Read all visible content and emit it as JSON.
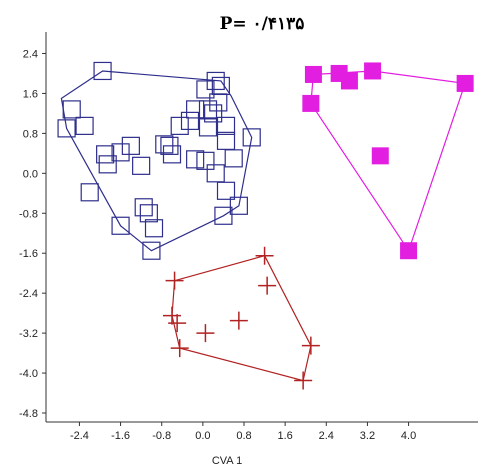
{
  "chart_data": {
    "type": "scatter",
    "title": "P= ۰/۴۱۳۵",
    "xlabel": "CVA 1",
    "ylabel": "",
    "xlim": [
      -3.05,
      5.35
    ],
    "ylim": [
      -4.98,
      2.75
    ],
    "x_ticks": [
      -2.4,
      -1.6,
      -0.8,
      0.0,
      0.8,
      1.6,
      2.4,
      3.2,
      4.0
    ],
    "x_tick_labels": [
      "-2.4",
      "-1.6",
      "-0.8",
      "0.0",
      "0.8",
      "1.6",
      "2.4",
      "3.2",
      "4.0"
    ],
    "y_ticks": [
      2.4,
      1.6,
      0.8,
      0.0,
      -0.8,
      -1.6,
      -2.4,
      -3.2,
      -4.0,
      -4.8
    ],
    "y_tick_labels": [
      "2.4",
      "1.6",
      "0.8",
      "0.0",
      "-0.8",
      "-1.6",
      "-2.4",
      "-3.2",
      "-4.0",
      "-4.8"
    ],
    "grid": false,
    "series": [
      {
        "marker": "open-square",
        "color": "#2e2e8c",
        "points": [
          [
            -2.55,
            1.28
          ],
          [
            -2.3,
            0.95
          ],
          [
            -2.65,
            0.9
          ],
          [
            -1.95,
            2.05
          ],
          [
            -1.9,
            0.38
          ],
          [
            -1.85,
            0.18
          ],
          [
            -1.4,
            0.55
          ],
          [
            -1.6,
            0.42
          ],
          [
            -1.2,
            0.15
          ],
          [
            -2.2,
            -0.38
          ],
          [
            -1.6,
            -1.05
          ],
          [
            -1.15,
            -0.68
          ],
          [
            -1.05,
            -0.8
          ],
          [
            -0.95,
            -1.1
          ],
          [
            -1.0,
            -1.55
          ],
          [
            -0.75,
            0.58
          ],
          [
            -0.6,
            0.38
          ],
          [
            -0.65,
            0.55
          ],
          [
            -0.25,
            1.05
          ],
          [
            -0.15,
            1.28
          ],
          [
            0.05,
            1.68
          ],
          [
            0.1,
            1.28
          ],
          [
            0.25,
            1.85
          ],
          [
            0.35,
            1.75
          ],
          [
            -0.45,
            0.95
          ],
          [
            0.3,
            1.42
          ],
          [
            0.1,
            0.92
          ],
          [
            0.2,
            1.2
          ],
          [
            0.45,
            0.95
          ],
          [
            -0.15,
            0.28
          ],
          [
            0.05,
            0.25
          ],
          [
            0.45,
            0.65
          ],
          [
            0.6,
            0.3
          ],
          [
            0.25,
            0.0
          ],
          [
            0.45,
            -0.35
          ],
          [
            0.4,
            -0.85
          ],
          [
            0.7,
            -0.65
          ],
          [
            0.95,
            0.72
          ]
        ],
        "hull": [
          [
            -1.95,
            2.05
          ],
          [
            0.35,
            1.85
          ],
          [
            0.55,
            1.55
          ],
          [
            0.95,
            0.72
          ],
          [
            0.7,
            -0.65
          ],
          [
            0.4,
            -0.85
          ],
          [
            -1.0,
            -1.55
          ],
          [
            -1.6,
            -1.05
          ],
          [
            -2.65,
            0.9
          ],
          [
            -2.75,
            1.5
          ]
        ]
      },
      {
        "marker": "filled-square",
        "color": "#e21ee0",
        "points": [
          [
            2.15,
            1.98
          ],
          [
            2.65,
            2.0
          ],
          [
            2.85,
            1.85
          ],
          [
            3.3,
            2.05
          ],
          [
            5.1,
            1.8
          ],
          [
            2.1,
            1.4
          ],
          [
            3.45,
            0.35
          ],
          [
            4.0,
            -1.55
          ]
        ],
        "hull": [
          [
            2.15,
            1.98
          ],
          [
            3.3,
            2.05
          ],
          [
            5.1,
            1.8
          ],
          [
            4.0,
            -1.55
          ],
          [
            2.1,
            1.4
          ]
        ]
      },
      {
        "marker": "plus",
        "color": "#b22222",
        "points": [
          [
            1.2,
            -1.65
          ],
          [
            1.25,
            -2.25
          ],
          [
            -0.5,
            -3.0
          ],
          [
            -0.55,
            -2.15
          ],
          [
            -0.6,
            -2.85
          ],
          [
            -0.45,
            -3.5
          ],
          [
            0.05,
            -3.2
          ],
          [
            0.7,
            -2.95
          ],
          [
            2.1,
            -3.45
          ],
          [
            1.95,
            -4.15
          ]
        ],
        "hull": [
          [
            1.2,
            -1.65
          ],
          [
            2.1,
            -3.45
          ],
          [
            1.95,
            -4.15
          ],
          [
            -0.45,
            -3.5
          ],
          [
            -0.6,
            -2.85
          ],
          [
            -0.55,
            -2.15
          ]
        ]
      }
    ]
  }
}
